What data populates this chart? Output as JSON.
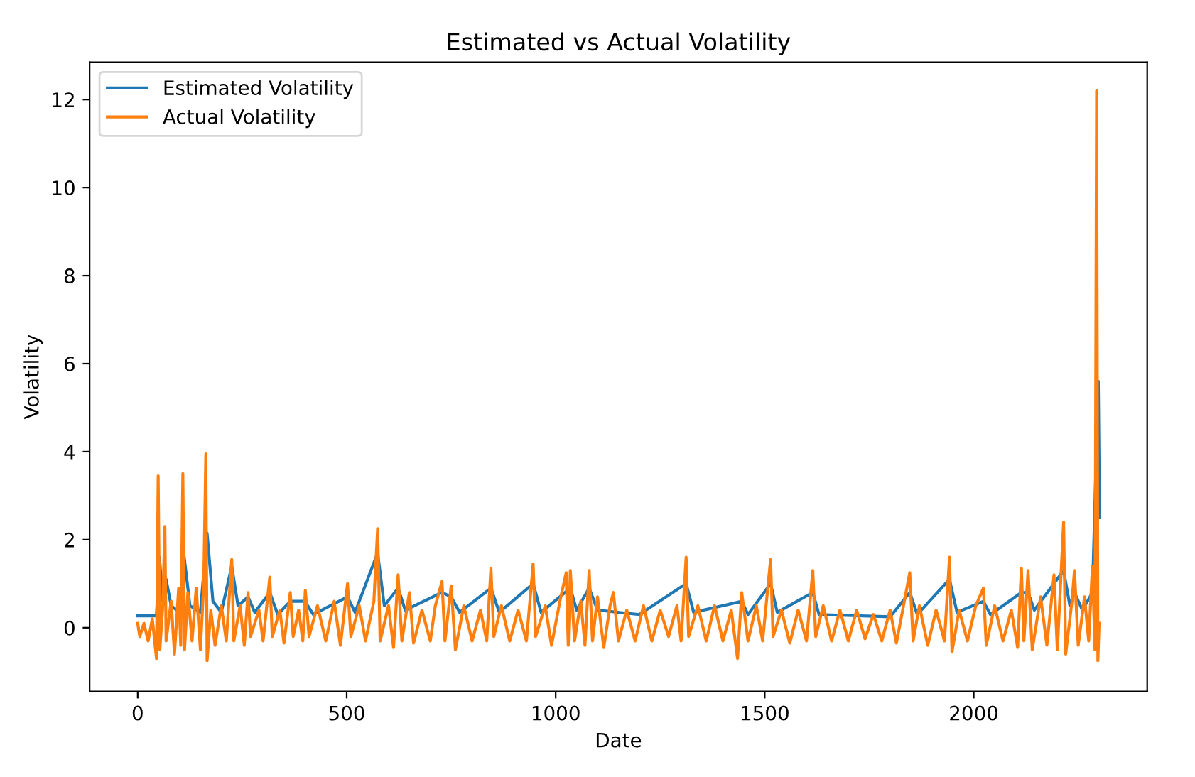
{
  "chart_data": {
    "type": "line",
    "title": "Estimated vs Actual Volatility",
    "xlabel": "Date",
    "ylabel": "Volatility",
    "xlim": [
      -115,
      2415
    ],
    "xticks": [
      0,
      500,
      1000,
      1500,
      2000
    ],
    "ylim": [
      -1.45,
      12.85
    ],
    "yticks": [
      0,
      2,
      4,
      6,
      8,
      10,
      12
    ],
    "grid": false,
    "legend": "top left",
    "marker": "none",
    "line_style": "solid",
    "series": [
      {
        "name": "Estimated Volatility",
        "color": "#1f77b4",
        "x": [
          0,
          45,
          52,
          60,
          68,
          80,
          100,
          110,
          125,
          150,
          166,
          180,
          200,
          225,
          240,
          264,
          280,
          316,
          335,
          365,
          400,
          420,
          502,
          520,
          574,
          590,
          623,
          640,
          728,
          750,
          770,
          845,
          865,
          946,
          965,
          1035,
          1050,
          1080,
          1100,
          1200,
          1312,
          1330,
          1445,
          1460,
          1514,
          1530,
          1615,
          1630,
          1800,
          1847,
          1865,
          1942,
          1960,
          2023,
          2040,
          2114,
          2130,
          2145,
          2215,
          2230,
          2241,
          2260,
          2284,
          2298,
          2301
        ],
        "values": [
          0.27,
          0.27,
          1.6,
          0.6,
          1.1,
          0.5,
          0.35,
          1.7,
          0.5,
          0.35,
          2.15,
          0.6,
          0.35,
          1.4,
          0.5,
          0.7,
          0.35,
          0.8,
          0.3,
          0.6,
          0.6,
          0.3,
          0.7,
          0.35,
          1.7,
          0.5,
          0.9,
          0.4,
          0.8,
          0.7,
          0.35,
          0.9,
          0.35,
          1.0,
          0.35,
          0.9,
          0.4,
          0.9,
          0.4,
          0.3,
          1.0,
          0.35,
          0.6,
          0.3,
          1.0,
          0.35,
          0.8,
          0.3,
          0.25,
          0.8,
          0.3,
          1.1,
          0.35,
          0.6,
          0.3,
          0.8,
          0.8,
          0.4,
          1.3,
          0.5,
          0.8,
          0.4,
          0.8,
          5.6,
          2.5
        ]
      },
      {
        "name": "Actual Volatility",
        "color": "#ff7f0e",
        "x": [
          0,
          5,
          15,
          25,
          35,
          45,
          49,
          53,
          60,
          65,
          68,
          80,
          88,
          98,
          103,
          108,
          112,
          120,
          130,
          140,
          150,
          158,
          163,
          166,
          175,
          185,
          200,
          212,
          225,
          230,
          245,
          255,
          264,
          270,
          290,
          300,
          316,
          322,
          340,
          350,
          365,
          372,
          385,
          395,
          401,
          410,
          430,
          450,
          470,
          485,
          502,
          510,
          530,
          545,
          565,
          574,
          580,
          600,
          612,
          623,
          632,
          650,
          660,
          680,
          700,
          712,
          728,
          735,
          750,
          760,
          780,
          800,
          820,
          835,
          845,
          852,
          870,
          890,
          910,
          930,
          946,
          952,
          975,
          990,
          1010,
          1025,
          1030,
          1035,
          1045,
          1060,
          1070,
          1080,
          1088,
          1100,
          1115,
          1130,
          1138,
          1150,
          1170,
          1190,
          1210,
          1230,
          1250,
          1270,
          1290,
          1300,
          1312,
          1318,
          1340,
          1360,
          1380,
          1400,
          1420,
          1435,
          1445,
          1460,
          1480,
          1495,
          1514,
          1520,
          1540,
          1560,
          1580,
          1600,
          1615,
          1622,
          1640,
          1660,
          1680,
          1700,
          1720,
          1740,
          1760,
          1780,
          1800,
          1815,
          1830,
          1847,
          1855,
          1870,
          1890,
          1910,
          1930,
          1942,
          1948,
          1965,
          1985,
          2005,
          2023,
          2030,
          2050,
          2070,
          2090,
          2105,
          2114,
          2120,
          2130,
          2140,
          2160,
          2175,
          2192,
          2200,
          2215,
          2220,
          2235,
          2241,
          2250,
          2265,
          2275,
          2284,
          2290,
          2294,
          2297,
          2300
        ],
        "values": [
          0.1,
          -0.2,
          0.1,
          -0.3,
          0.2,
          -0.7,
          3.45,
          -0.5,
          0.5,
          2.3,
          -0.3,
          0.6,
          -0.6,
          0.9,
          -0.4,
          3.5,
          -0.5,
          0.8,
          -0.3,
          0.9,
          -0.5,
          1.0,
          3.95,
          -0.75,
          0.4,
          -0.4,
          0.5,
          -0.3,
          1.55,
          -0.3,
          0.5,
          -0.4,
          0.8,
          -0.2,
          0.4,
          -0.3,
          1.15,
          -0.2,
          0.4,
          -0.35,
          0.8,
          -0.2,
          0.4,
          -0.3,
          0.85,
          -0.2,
          0.5,
          -0.3,
          0.6,
          -0.4,
          1.0,
          -0.2,
          0.5,
          -0.3,
          0.6,
          2.25,
          -0.3,
          0.5,
          -0.45,
          1.2,
          -0.3,
          0.8,
          -0.35,
          0.4,
          -0.3,
          0.5,
          1.05,
          -0.3,
          0.95,
          -0.5,
          0.5,
          -0.3,
          0.4,
          -0.3,
          1.35,
          -0.2,
          0.5,
          -0.3,
          0.4,
          -0.3,
          1.45,
          -0.2,
          0.5,
          -0.4,
          0.6,
          1.25,
          -0.4,
          1.3,
          -0.3,
          0.6,
          -0.4,
          1.3,
          -0.3,
          0.7,
          -0.45,
          0.5,
          0.8,
          -0.3,
          0.4,
          -0.3,
          0.5,
          -0.3,
          0.4,
          -0.2,
          0.5,
          -0.3,
          1.6,
          -0.2,
          0.5,
          -0.3,
          0.5,
          -0.3,
          0.4,
          -0.7,
          0.8,
          -0.3,
          0.5,
          -0.3,
          1.55,
          -0.2,
          0.4,
          -0.35,
          0.4,
          -0.3,
          1.3,
          -0.2,
          0.5,
          -0.3,
          0.4,
          -0.3,
          0.4,
          -0.25,
          0.3,
          -0.3,
          0.4,
          -0.35,
          0.4,
          1.25,
          -0.3,
          0.5,
          -0.4,
          0.4,
          -0.3,
          1.6,
          -0.55,
          0.4,
          -0.3,
          0.5,
          0.9,
          -0.4,
          0.5,
          -0.3,
          0.4,
          -0.45,
          1.35,
          -0.3,
          1.3,
          -0.5,
          0.7,
          -0.4,
          1.2,
          -0.5,
          2.4,
          -0.6,
          0.6,
          1.3,
          -0.4,
          0.7,
          -0.3,
          1.4,
          -0.5,
          12.2,
          -0.75,
          0.1
        ]
      }
    ]
  }
}
